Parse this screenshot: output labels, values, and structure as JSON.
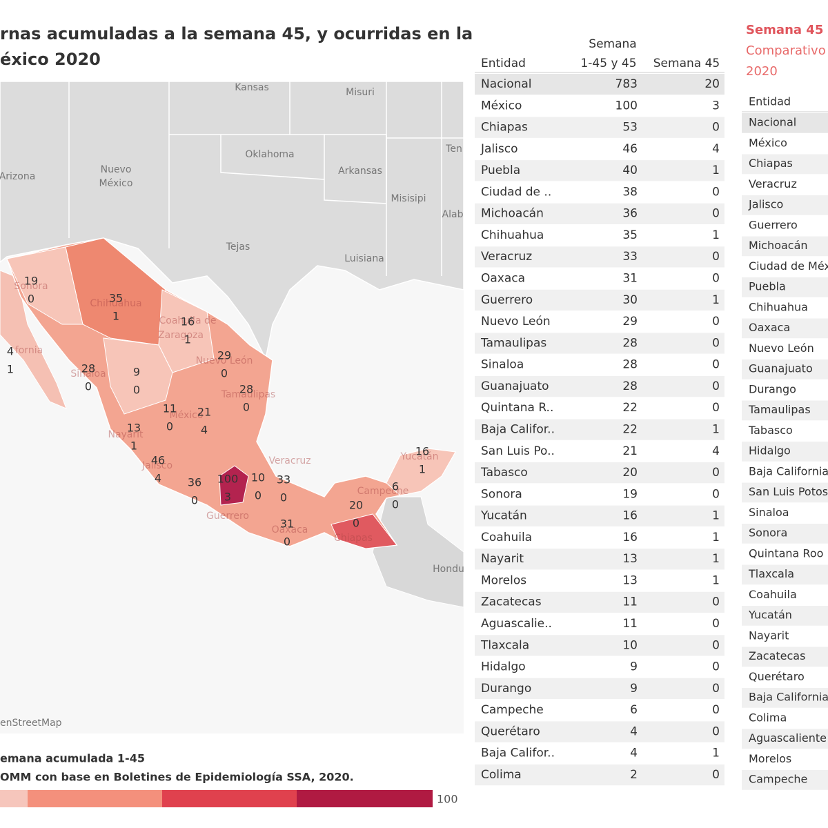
{
  "header": {
    "title_lines": [
      "rnas acumuladas a la semana 45, y ocurridas en la",
      "éxico 2020"
    ]
  },
  "map": {
    "places": [
      "Kansas",
      "Misuri",
      "Oklahoma",
      "Arkansas",
      "Ten",
      "Nuevo",
      "México",
      "Arizona",
      "Misisipi",
      "Alab",
      "Tejas",
      "Luisiana",
      "Hondu"
    ],
    "states": [
      "Sonora",
      "Chihuahua",
      "fornia",
      "Sinaloa",
      "Coahuila de",
      "Zaragoza",
      "Nuevo León",
      "Tamaulipas",
      "México",
      "Nayarit",
      "Jalisco",
      "Guerrero",
      "Oaxaca",
      "Veracruz",
      "Campeche",
      "Yucatán",
      "Chiapas"
    ],
    "labels": [
      {
        "total": 19,
        "week": 0
      },
      {
        "total": 35,
        "week": 1
      },
      {
        "total": 4,
        "week": 1
      },
      {
        "total": 28,
        "week": 0
      },
      {
        "total": 9,
        "week": 0
      },
      {
        "total": 16,
        "week": 1
      },
      {
        "total": 29,
        "week": 0
      },
      {
        "total": 28,
        "week": 0
      },
      {
        "total": 11,
        "week": 0
      },
      {
        "total": 21,
        "week": 4
      },
      {
        "total": 13,
        "week": 1
      },
      {
        "total": 46,
        "week": 4
      },
      {
        "total": 36,
        "week": 0
      },
      {
        "total": 100,
        "week": 3
      },
      {
        "total": 10,
        "week": 0
      },
      {
        "total": 33,
        "week": 0
      },
      {
        "total": 31,
        "week": 0
      },
      {
        "total": 20,
        "week": 0
      },
      {
        "total": 6,
        "week": 0
      },
      {
        "total": 16,
        "week": 1
      }
    ],
    "attribution": "enStreetMap"
  },
  "legend": {
    "title": "emana acumulada 1-45",
    "source": "OMM con base en Boletines de Epidemiología SSA, 2020.",
    "max": 100
  },
  "table": {
    "columns": [
      [
        "Entidad"
      ],
      [
        "Semana",
        "1-45 y 45"
      ],
      [
        "Semana 45"
      ]
    ],
    "rows": [
      [
        "Nacional",
        783,
        20
      ],
      [
        "México",
        100,
        3
      ],
      [
        "Chiapas",
        53,
        0
      ],
      [
        "Jalisco",
        46,
        4
      ],
      [
        "Puebla",
        40,
        1
      ],
      [
        "Ciudad de ..",
        38,
        0
      ],
      [
        "Michoacán",
        36,
        0
      ],
      [
        "Chihuahua",
        35,
        1
      ],
      [
        "Veracruz",
        33,
        0
      ],
      [
        "Oaxaca",
        31,
        0
      ],
      [
        "Guerrero",
        30,
        1
      ],
      [
        "Nuevo León",
        29,
        0
      ],
      [
        "Tamaulipas",
        28,
        0
      ],
      [
        "Sinaloa",
        28,
        0
      ],
      [
        "Guanajuato",
        28,
        0
      ],
      [
        "Quintana R..",
        22,
        0
      ],
      [
        "Baja Califor..",
        22,
        1
      ],
      [
        "San Luis Po..",
        21,
        4
      ],
      [
        "Tabasco",
        20,
        0
      ],
      [
        "Sonora",
        19,
        0
      ],
      [
        "Yucatán",
        16,
        1
      ],
      [
        "Coahuila",
        16,
        1
      ],
      [
        "Nayarit",
        13,
        1
      ],
      [
        "Morelos",
        13,
        1
      ],
      [
        "Zacatecas",
        11,
        0
      ],
      [
        "Aguascalie..",
        11,
        0
      ],
      [
        "Tlaxcala",
        10,
        0
      ],
      [
        "Hidalgo",
        9,
        0
      ],
      [
        "Durango",
        9,
        0
      ],
      [
        "Campeche",
        6,
        0
      ],
      [
        "Querétaro",
        4,
        0
      ],
      [
        "Baja Califor..",
        4,
        1
      ],
      [
        "Colima",
        2,
        0
      ]
    ]
  },
  "right_panel": {
    "title": "Semana 45",
    "subtitle_lines": [
      "Comparativo",
      "2020"
    ],
    "column": "Entidad",
    "rows": [
      "Nacional",
      "México",
      "Chiapas",
      "Veracruz",
      "Jalisco",
      "Guerrero",
      "Michoacán",
      "Ciudad de Méx",
      "Puebla",
      "Chihuahua",
      "Oaxaca",
      "Nuevo León",
      "Guanajuato",
      "Durango",
      "Tamaulipas",
      "Tabasco",
      "Hidalgo",
      "Baja California",
      "San Luis Potos",
      "Sinaloa",
      "Sonora",
      "Quintana Roo",
      "Tlaxcala",
      "Coahuila",
      "Yucatán",
      "Nayarit",
      "Zacatecas",
      "Querétaro",
      "Baja California",
      "Colima",
      "Aguascaliente",
      "Morelos",
      "Campeche"
    ]
  }
}
